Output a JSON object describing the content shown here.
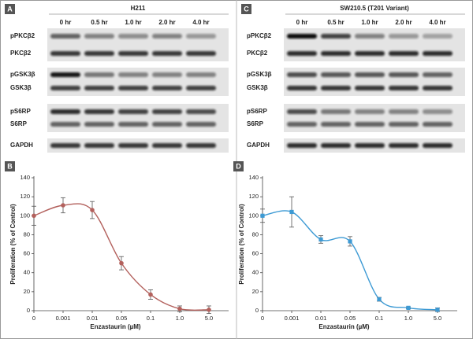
{
  "blots": [
    {
      "panel": "A",
      "title": "H211",
      "times": [
        "0 hr",
        "0.5 hr",
        "1.0 hr",
        "2.0 hr",
        "4.0 hr"
      ],
      "rows": [
        "pPKCβ2",
        "PKCβ2",
        "pGSK3β",
        "GSK3β",
        "pS6RP",
        "S6RP",
        "GAPDH"
      ]
    },
    {
      "panel": "C",
      "title": "SW210.5 (T201 Variant)",
      "times": [
        "0 hr",
        "0.5 hr",
        "1.0 hr",
        "2.0 hr",
        "4.0 hr"
      ],
      "rows": [
        "pPKCβ2",
        "PKCβ2",
        "pGSK3β",
        "GSK3β",
        "pS6RP",
        "S6RP",
        "GAPDH"
      ]
    }
  ],
  "chart_data": [
    {
      "type": "line",
      "panel": "B",
      "ylabel": "Proliferation (% of Control)",
      "xlabel": "Enzastaurin (µM)",
      "categories": [
        "0",
        "0.001",
        "0.01",
        "0.05",
        "0.1",
        "1.0",
        "5.0"
      ],
      "values": [
        100,
        111,
        106,
        50,
        17,
        2,
        1
      ],
      "errors": [
        10,
        8,
        9,
        7,
        5,
        3,
        4
      ],
      "color": "#b3615d",
      "marker": "circle",
      "ylim": [
        0,
        140
      ],
      "yticks": [
        0,
        20,
        40,
        60,
        80,
        100,
        120,
        140
      ]
    },
    {
      "type": "line",
      "panel": "D",
      "ylabel": "Proliferation (% of Control)",
      "xlabel": "Enzastaurin (µM)",
      "categories": [
        "0",
        "0.001",
        "0.01",
        "0.05",
        "0.1",
        "1.0",
        "5.0"
      ],
      "values": [
        100,
        104,
        75,
        73,
        12,
        3,
        1
      ],
      "errors": [
        7,
        16,
        4,
        5,
        2,
        1,
        2
      ],
      "color": "#3d9ad4",
      "marker": "square",
      "ylim": [
        0,
        140
      ],
      "yticks": [
        0,
        20,
        40,
        60,
        80,
        100,
        120,
        140
      ]
    }
  ]
}
